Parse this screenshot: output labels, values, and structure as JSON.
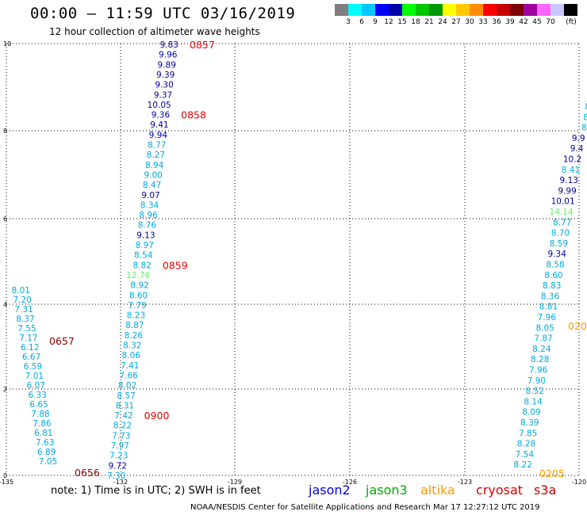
{
  "title": "00:00 – 11:59 UTC 03/16/2019",
  "subtitle": "12 hour collection of altimeter wave heights",
  "legend": {
    "unit": "(ft)",
    "bins": [
      {
        "label": "",
        "color": "#7f7f7f"
      },
      {
        "label": "3",
        "color": "#00ffff"
      },
      {
        "label": "6",
        "color": "#00c8ff"
      },
      {
        "label": "9",
        "color": "#0000ff"
      },
      {
        "label": "12",
        "color": "#0000aa"
      },
      {
        "label": "15",
        "color": "#00ff00"
      },
      {
        "label": "18",
        "color": "#00c800"
      },
      {
        "label": "21",
        "color": "#009600"
      },
      {
        "label": "24",
        "color": "#ffff00"
      },
      {
        "label": "27",
        "color": "#ffc800"
      },
      {
        "label": "30",
        "color": "#ff8c00"
      },
      {
        "label": "33",
        "color": "#ff0000"
      },
      {
        "label": "36",
        "color": "#c80000"
      },
      {
        "label": "39",
        "color": "#7f0000"
      },
      {
        "label": "42",
        "color": "#a000a0"
      },
      {
        "label": "45",
        "color": "#ff64ff"
      },
      {
        "label": "70",
        "color": "#c8c8ff"
      },
      {
        "label": "",
        "color": "#000000"
      }
    ]
  },
  "axes": {
    "lon_ticks": [
      "-135",
      "-132",
      "-129",
      "-126",
      "-123",
      "-120"
    ],
    "lat_ticks": [
      "0",
      "2",
      "4",
      "6",
      "8",
      "10"
    ]
  },
  "colors": {
    "light": "#00aadd",
    "dark": "#000099",
    "green": "#66ee66",
    "jason2": "#0000dd",
    "jason3": "#00aa00",
    "altika": "#ff9900",
    "cryosat": "#dd0000",
    "s3a": "#cc0000",
    "time_red": "#ee0000",
    "time_dark": "#880000",
    "time_orange": "#ff9900"
  },
  "tracks": {
    "track_a": [
      {
        "v": "9.83",
        "c": "dark"
      },
      {
        "v": "9.96",
        "c": "dark"
      },
      {
        "v": "9.89",
        "c": "dark"
      },
      {
        "v": "9.39",
        "c": "dark"
      },
      {
        "v": "9.30",
        "c": "dark"
      },
      {
        "v": "9.37",
        "c": "dark"
      },
      {
        "v": "10.05",
        "c": "dark"
      },
      {
        "v": "9.36",
        "c": "dark"
      },
      {
        "v": "9.41",
        "c": "dark"
      },
      {
        "v": "9.94",
        "c": "dark"
      },
      {
        "v": "8.77",
        "c": "light"
      },
      {
        "v": "8.27",
        "c": "light"
      },
      {
        "v": "8.94",
        "c": "light"
      },
      {
        "v": "9.00",
        "c": "light"
      },
      {
        "v": "8.47",
        "c": "light"
      },
      {
        "v": "9.07",
        "c": "dark"
      },
      {
        "v": "8.34",
        "c": "light"
      },
      {
        "v": "8.96",
        "c": "light"
      },
      {
        "v": "8.76",
        "c": "light"
      },
      {
        "v": "9.13",
        "c": "dark"
      },
      {
        "v": "8.97",
        "c": "light"
      },
      {
        "v": "8.54",
        "c": "light"
      },
      {
        "v": "8.82",
        "c": "light"
      },
      {
        "v": "12.76",
        "c": "green"
      },
      {
        "v": "8.92",
        "c": "light"
      },
      {
        "v": "8.60",
        "c": "light"
      },
      {
        "v": "7.79",
        "c": "light"
      },
      {
        "v": "8.23",
        "c": "light"
      },
      {
        "v": "8.87",
        "c": "light"
      },
      {
        "v": "8.26",
        "c": "light"
      },
      {
        "v": "8.32",
        "c": "light"
      },
      {
        "v": "8.06",
        "c": "light"
      },
      {
        "v": "7.41",
        "c": "light"
      },
      {
        "v": "7.66",
        "c": "light"
      },
      {
        "v": "8.02",
        "c": "light"
      },
      {
        "v": "8.57",
        "c": "light"
      },
      {
        "v": "8.31",
        "c": "light"
      },
      {
        "v": "7.42",
        "c": "light"
      },
      {
        "v": "8.22",
        "c": "light"
      },
      {
        "v": "7.73",
        "c": "light"
      },
      {
        "v": "7.97",
        "c": "light"
      },
      {
        "v": "7.23",
        "c": "light"
      },
      {
        "v": "9.72",
        "c": "dark"
      },
      {
        "v": "7.30",
        "c": "light"
      }
    ],
    "track_a_times": [
      {
        "t": "0857",
        "c": "time_red"
      },
      {
        "t": "0858",
        "c": "time_red"
      },
      {
        "t": "0859",
        "c": "time_red"
      },
      {
        "t": "0900",
        "c": "time_red"
      }
    ],
    "track_b": [
      {
        "v": "8.01",
        "c": "light"
      },
      {
        "v": "7.20",
        "c": "light"
      },
      {
        "v": "7.31",
        "c": "light"
      },
      {
        "v": "8.37",
        "c": "light"
      },
      {
        "v": "7.55",
        "c": "light"
      },
      {
        "v": "7.17",
        "c": "light"
      },
      {
        "v": "6.12",
        "c": "light"
      },
      {
        "v": "6.67",
        "c": "light"
      },
      {
        "v": "6.59",
        "c": "light"
      },
      {
        "v": "7.01",
        "c": "light"
      },
      {
        "v": "6.07",
        "c": "light"
      },
      {
        "v": "6.33",
        "c": "light"
      },
      {
        "v": "6.65",
        "c": "light"
      },
      {
        "v": "7.88",
        "c": "light"
      },
      {
        "v": "7.86",
        "c": "light"
      },
      {
        "v": "6.81",
        "c": "light"
      },
      {
        "v": "7.63",
        "c": "light"
      },
      {
        "v": "6.89",
        "c": "light"
      },
      {
        "v": "7.05",
        "c": "light"
      }
    ],
    "track_b_times": [
      {
        "t": "0657",
        "c": "time_dark"
      },
      {
        "t": "0656",
        "c": "time_dark"
      }
    ],
    "track_c": [
      {
        "v": "8",
        "c": "light"
      },
      {
        "v": "8",
        "c": "light"
      },
      {
        "v": "8",
        "c": "light"
      },
      {
        "v": "9.9",
        "c": "dark"
      },
      {
        "v": "9.4",
        "c": "dark"
      },
      {
        "v": "10.2",
        "c": "dark"
      },
      {
        "v": "8.41",
        "c": "light"
      },
      {
        "v": "9.13",
        "c": "dark"
      },
      {
        "v": "9.99",
        "c": "dark"
      },
      {
        "v": "10.01",
        "c": "dark"
      },
      {
        "v": "14.14",
        "c": "green"
      },
      {
        "v": "8.77",
        "c": "light"
      },
      {
        "v": "8.70",
        "c": "light"
      },
      {
        "v": "8.59",
        "c": "light"
      },
      {
        "v": "9.34",
        "c": "dark"
      },
      {
        "v": "8.58",
        "c": "light"
      },
      {
        "v": "8.60",
        "c": "light"
      },
      {
        "v": "8.83",
        "c": "light"
      },
      {
        "v": "8.36",
        "c": "light"
      },
      {
        "v": "8.81",
        "c": "light"
      },
      {
        "v": "7.96",
        "c": "light"
      },
      {
        "v": "8.05",
        "c": "light"
      },
      {
        "v": "7.87",
        "c": "light"
      },
      {
        "v": "8.24",
        "c": "light"
      },
      {
        "v": "8.28",
        "c": "light"
      },
      {
        "v": "7.96",
        "c": "light"
      },
      {
        "v": "7.90",
        "c": "light"
      },
      {
        "v": "8.52",
        "c": "light"
      },
      {
        "v": "8.14",
        "c": "light"
      },
      {
        "v": "8.09",
        "c": "light"
      },
      {
        "v": "8.39",
        "c": "light"
      },
      {
        "v": "7.85",
        "c": "light"
      },
      {
        "v": "8.28",
        "c": "light"
      },
      {
        "v": "7.54",
        "c": "light"
      },
      {
        "v": "8.22",
        "c": "light"
      }
    ],
    "track_c_times": [
      {
        "t": "020",
        "c": "time_orange"
      },
      {
        "t": "0205",
        "c": "time_orange"
      }
    ]
  },
  "footer": {
    "note": "note:  1) Time is in UTC;  2) SWH is in feet",
    "sat_jason2": "jason2",
    "sat_jason3": "jason3",
    "sat_altika": "altika",
    "sat_cryosat": "cryosat",
    "sat_s3a": "s3a",
    "credit": "NOAA/NESDIS Center for Satellite Applications and Research     Mar 17 12:27:12 UTC 2019"
  }
}
